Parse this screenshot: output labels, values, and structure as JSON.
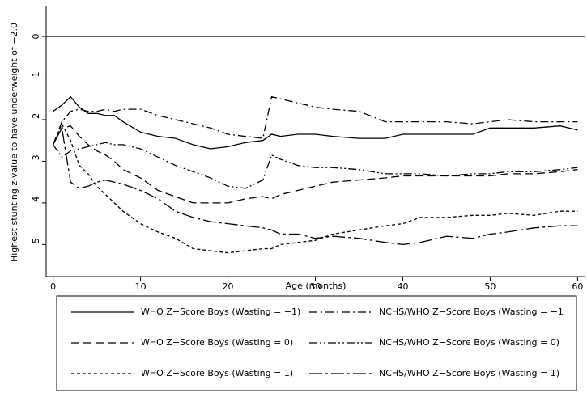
{
  "chart_data": {
    "type": "line",
    "y_label": "Highest stunting z-value to have underweight of −2.0",
    "x_label": "Age (months)",
    "x": [
      0,
      1,
      2,
      3,
      4,
      5,
      6,
      7,
      8,
      10,
      12,
      14,
      16,
      18,
      20,
      22,
      24,
      25,
      26,
      28,
      30,
      32,
      35,
      38,
      40,
      42,
      45,
      48,
      50,
      52,
      55,
      58,
      60
    ],
    "xlim": [
      -0.8,
      60.8
    ],
    "xticks": [
      0,
      10,
      20,
      30,
      40,
      50,
      60
    ],
    "ylim": [
      -5.77,
      0.72
    ],
    "yticks": [
      {
        "value": 0,
        "label": "0"
      },
      {
        "value": -1,
        "label": "−1"
      },
      {
        "value": -2,
        "label": "−2"
      },
      {
        "value": -3,
        "label": "−3"
      },
      {
        "value": -4,
        "label": "−4"
      },
      {
        "value": -5,
        "label": "−5"
      }
    ],
    "yline": 0,
    "series": [
      {
        "name": "WHO Z−Score Boys (Wasting = −1)",
        "color": "#000000",
        "values": [
          -1.8,
          -1.65,
          -1.45,
          -1.7,
          -1.85,
          -1.85,
          -1.9,
          -1.9,
          -2.05,
          -2.3,
          -2.4,
          -2.45,
          -2.6,
          -2.7,
          -2.65,
          -2.55,
          -2.5,
          -2.35,
          -2.4,
          -2.35,
          -2.35,
          -2.4,
          -2.45,
          -2.45,
          -2.35,
          -2.35,
          -2.35,
          -2.35,
          -2.2,
          -2.2,
          -2.2,
          -2.15,
          -2.25
        ]
      },
      {
        "name": "WHO Z−Score Boys (Wasting = 0)",
        "color": "#000000",
        "values": [
          -2.6,
          -2.2,
          -2.15,
          -2.4,
          -2.6,
          -2.75,
          -2.85,
          -3.0,
          -3.2,
          -3.4,
          -3.7,
          -3.85,
          -4.0,
          -4.0,
          -4.0,
          -3.9,
          -3.85,
          -3.9,
          -3.8,
          -3.7,
          -3.6,
          -3.5,
          -3.45,
          -3.4,
          -3.35,
          -3.35,
          -3.35,
          -3.35,
          -3.35,
          -3.3,
          -3.3,
          -3.25,
          -3.2
        ]
      },
      {
        "name": "WHO Z−Score Boys (Wasting = 1)",
        "color": "#000000",
        "values": [
          -2.6,
          -2.1,
          -2.5,
          -3.1,
          -3.3,
          -3.6,
          -3.8,
          -4.0,
          -4.2,
          -4.5,
          -4.7,
          -4.85,
          -5.1,
          -5.15,
          -5.2,
          -5.15,
          -5.1,
          -5.1,
          -5.0,
          -4.95,
          -4.9,
          -4.75,
          -4.65,
          -4.55,
          -4.5,
          -4.35,
          -4.35,
          -4.3,
          -4.3,
          -4.25,
          -4.3,
          -4.2,
          -4.2
        ]
      },
      {
        "name": "NCHS/WHO Z−Score Boys (Wasting = −1",
        "color": "#000000",
        "values": [
          -2.6,
          -2.05,
          -1.8,
          -1.75,
          -1.8,
          -1.8,
          -1.75,
          -1.8,
          -1.75,
          -1.75,
          -1.9,
          -2.0,
          -2.1,
          -2.2,
          -2.35,
          -2.4,
          -2.45,
          -1.45,
          -1.5,
          -1.6,
          -1.7,
          -1.75,
          -1.8,
          -2.05,
          -2.05,
          -2.05,
          -2.05,
          -2.1,
          -2.05,
          -2.0,
          -2.05,
          -2.05,
          -2.05
        ]
      },
      {
        "name": "NCHS/WHO Z−Score Boys (Wasting = 0)",
        "color": "#000000",
        "values": [
          -2.6,
          -2.9,
          -2.75,
          -2.7,
          -2.65,
          -2.6,
          -2.55,
          -2.6,
          -2.6,
          -2.7,
          -2.9,
          -3.1,
          -3.25,
          -3.4,
          -3.6,
          -3.65,
          -3.45,
          -2.85,
          -2.95,
          -3.1,
          -3.15,
          -3.15,
          -3.2,
          -3.3,
          -3.3,
          -3.3,
          -3.35,
          -3.3,
          -3.3,
          -3.25,
          -3.25,
          -3.2,
          -3.15
        ]
      },
      {
        "name": "NCHS/WHO Z−Score Boys (Wasting = 1)",
        "color": "#000000",
        "values": [
          -2.6,
          -2.2,
          -3.5,
          -3.65,
          -3.6,
          -3.5,
          -3.45,
          -3.5,
          -3.55,
          -3.7,
          -3.9,
          -4.2,
          -4.35,
          -4.45,
          -4.5,
          -4.55,
          -4.6,
          -4.65,
          -4.75,
          -4.75,
          -4.85,
          -4.8,
          -4.85,
          -4.95,
          -5.0,
          -4.95,
          -4.8,
          -4.85,
          -4.75,
          -4.7,
          -4.6,
          -4.55,
          -4.55
        ]
      }
    ]
  }
}
